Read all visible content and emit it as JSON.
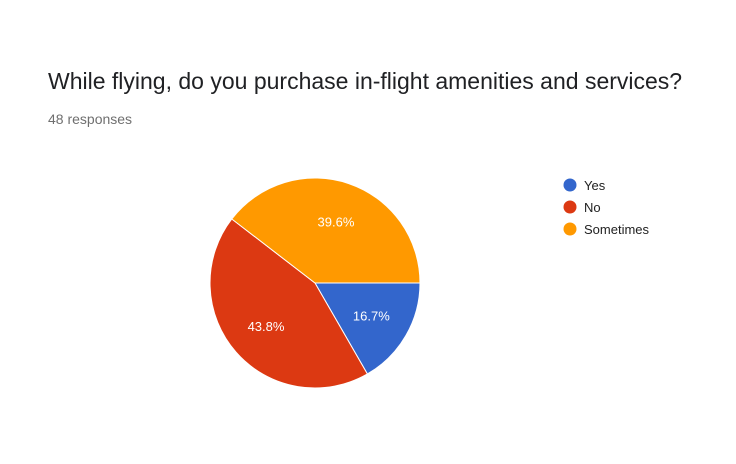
{
  "header": {
    "title": "While flying, do you purchase in-flight amenities and services?",
    "responses": "48 responses"
  },
  "chart_data": {
    "type": "pie",
    "title": "While flying, do you purchase in-flight amenities and services?",
    "categories": [
      "Yes",
      "No",
      "Sometimes"
    ],
    "values": [
      16.7,
      43.8,
      39.6
    ],
    "value_labels": [
      "16.7%",
      "43.8%",
      "39.6%"
    ],
    "colors": [
      "#3366cc",
      "#dc3912",
      "#ff9900"
    ],
    "legend_position": "right",
    "start_angle": "3 o'clock, clockwise"
  }
}
